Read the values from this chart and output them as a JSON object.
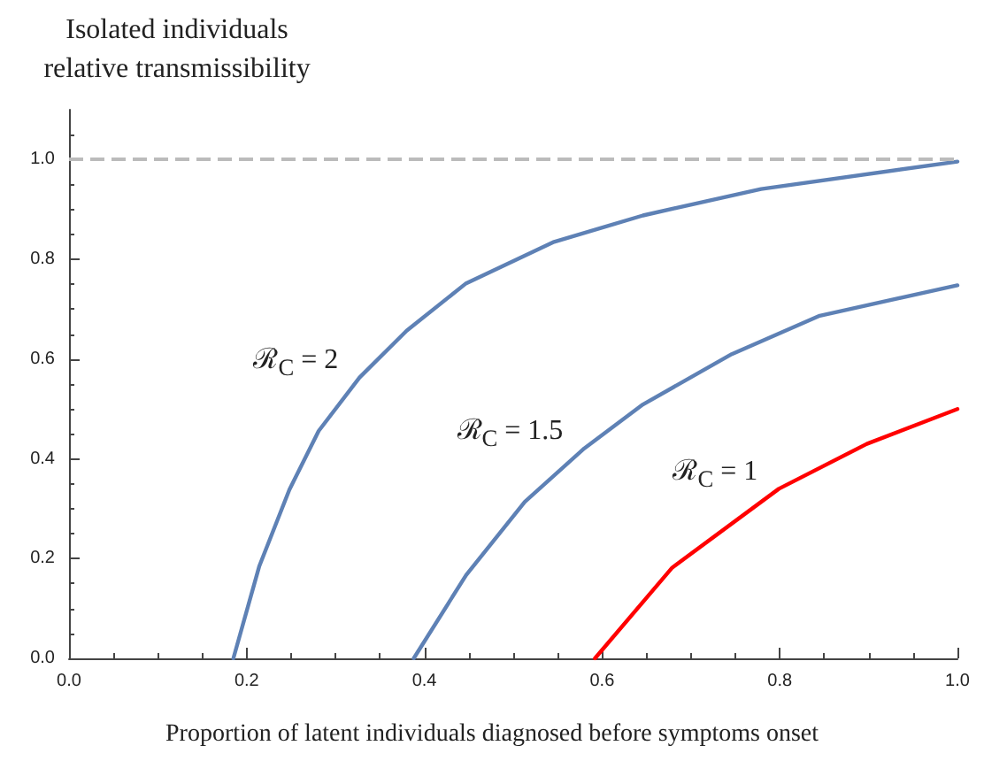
{
  "chart_data": {
    "type": "line",
    "xlabel": "Proportion of latent individuals diagnosed before symptoms onset",
    "ylabel": "Isolated individuals\nrelative transmissibility",
    "series": [
      {
        "name": "ℛ$_{C}$ = 2",
        "color": "#5e81b5",
        "x": [
          0.185,
          0.214,
          0.248,
          0.281,
          0.327,
          0.38,
          0.447,
          0.546,
          0.646,
          0.779,
          1.0
        ],
        "values": [
          0,
          0.184,
          0.338,
          0.456,
          0.563,
          0.657,
          0.752,
          0.835,
          0.888,
          0.941,
          0.996
        ]
      },
      {
        "name": "ℛ$_{C}$ = 1.5",
        "color": "#5e81b5",
        "x": [
          0.388,
          0.447,
          0.513,
          0.58,
          0.646,
          0.746,
          0.845,
          1.0
        ],
        "values": [
          0,
          0.167,
          0.314,
          0.421,
          0.509,
          0.61,
          0.687,
          0.748
        ]
      },
      {
        "name": "ℛ$_{C}$ = 1",
        "color": "#ff0000",
        "x": [
          0.592,
          0.679,
          0.799,
          0.898,
          1.0
        ],
        "values": [
          0,
          0.182,
          0.34,
          0.43,
          0.5
        ]
      }
    ],
    "ref_lines": [
      {
        "axis": "y",
        "value": 1,
        "color": "#bbbbbb",
        "line_style": "dashed"
      }
    ],
    "xlim": [
      0,
      1
    ],
    "xticks": [
      {
        "value": 0,
        "label": "0.0"
      },
      {
        "value": 0.2,
        "label": "0.2"
      },
      {
        "value": 0.4,
        "label": "0.4"
      },
      {
        "value": 0.6,
        "label": "0.6"
      },
      {
        "value": 0.8,
        "label": "0.8"
      },
      {
        "value": 1,
        "label": "1.0"
      }
    ],
    "ylim": [
      0,
      1.1
    ],
    "yticks": [
      {
        "value": 0,
        "label": "0.0"
      },
      {
        "value": 0.2,
        "label": "0.2"
      },
      {
        "value": 0.4,
        "label": "0.4"
      },
      {
        "value": 0.6,
        "label": "0.6"
      },
      {
        "value": 0.8,
        "label": "0.8"
      },
      {
        "value": 1,
        "label": "1.0"
      }
    ],
    "grid": false,
    "marker": "none",
    "line_style": "solid"
  }
}
